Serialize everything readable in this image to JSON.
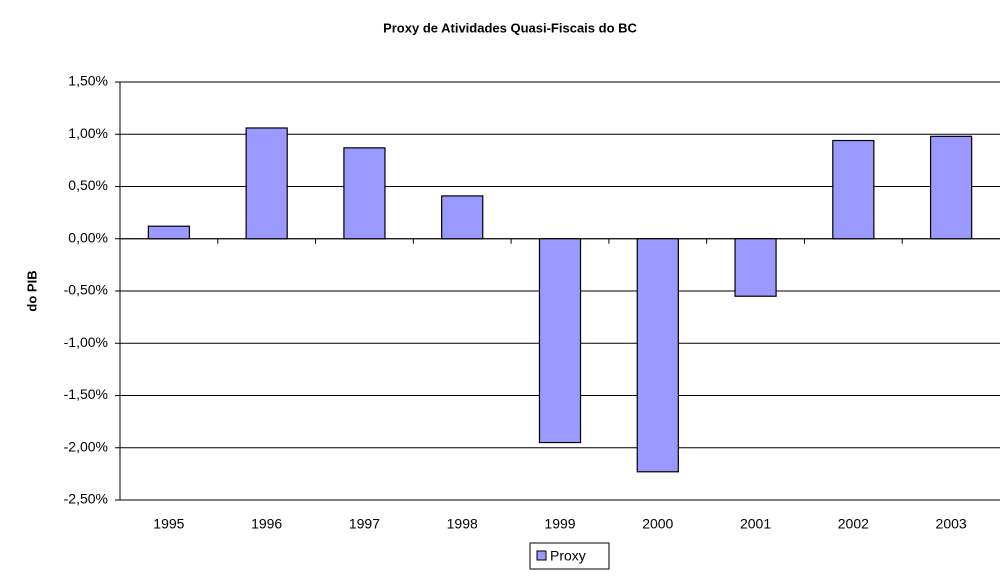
{
  "chart_data": {
    "type": "bar",
    "title": "Proxy de Atividades Quasi-Fiscais do BC",
    "y_label": "do PIB",
    "categories": [
      "1995",
      "1996",
      "1997",
      "1998",
      "1999",
      "2000",
      "2001",
      "2002",
      "2003"
    ],
    "series": [
      {
        "name": "Proxy",
        "color": "#9999ff",
        "values": [
          0.12,
          1.06,
          0.87,
          0.41,
          -1.95,
          -2.23,
          -0.55,
          0.94,
          0.98
        ]
      }
    ],
    "ylim": [
      -2.5,
      1.5
    ],
    "yticks": [
      {
        "value": 1.5,
        "label": "1,50%"
      },
      {
        "value": 1.0,
        "label": "1,00%"
      },
      {
        "value": 0.5,
        "label": "0,50%"
      },
      {
        "value": 0,
        "label": "0,00%"
      },
      {
        "value": -0.5,
        "label": "-0,50%"
      },
      {
        "value": -1.0,
        "label": "-1,00%"
      },
      {
        "value": -1.5,
        "label": "-1,50%"
      },
      {
        "value": -2.0,
        "label": "-2,00%"
      },
      {
        "value": -2.5,
        "label": "-2,50%"
      }
    ],
    "grid": true,
    "legend": "bottom"
  }
}
